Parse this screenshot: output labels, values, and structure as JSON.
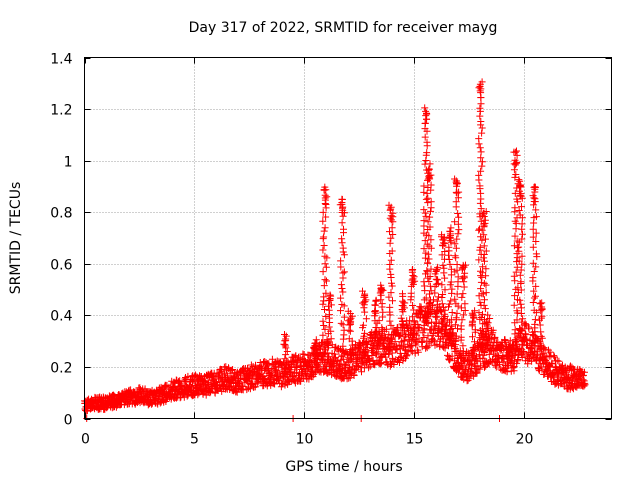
{
  "chart_data": {
    "type": "scatter",
    "title": "Day 317 of 2022, SRMTID for receiver mayg",
    "xlabel": "GPS time / hours",
    "ylabel": "SRMTID / TECUs",
    "xlim": [
      0,
      24
    ],
    "ylim": [
      0,
      1.4
    ],
    "x_ticks": [
      0,
      5,
      10,
      15,
      20
    ],
    "x_tick_labels": [
      "0",
      "5",
      "10",
      "15",
      "20"
    ],
    "y_ticks": [
      0,
      0.2,
      0.4,
      0.6,
      0.8,
      1.0,
      1.2,
      1.4
    ],
    "y_tick_labels": [
      "0",
      "0.2",
      "0.4",
      "0.6",
      "0.8",
      "1",
      "1.2",
      "1.4"
    ],
    "grid": true,
    "marker": "+",
    "colors": {
      "series": "#ff0000",
      "axes": "#000000",
      "grid": "#a0a0a0"
    },
    "series": [
      {
        "name": "SRMTID",
        "baseline": [
          [
            0.0,
            0.05
          ],
          [
            0.5,
            0.06
          ],
          [
            1.0,
            0.06
          ],
          [
            1.5,
            0.07
          ],
          [
            2.0,
            0.08
          ],
          [
            2.5,
            0.09
          ],
          [
            3.0,
            0.08
          ],
          [
            3.5,
            0.09
          ],
          [
            4.0,
            0.11
          ],
          [
            4.5,
            0.12
          ],
          [
            5.0,
            0.13
          ],
          [
            5.5,
            0.13
          ],
          [
            6.0,
            0.14
          ],
          [
            6.5,
            0.16
          ],
          [
            7.0,
            0.14
          ],
          [
            7.5,
            0.16
          ],
          [
            8.0,
            0.17
          ],
          [
            8.5,
            0.18
          ],
          [
            9.0,
            0.17
          ],
          [
            9.5,
            0.19
          ],
          [
            10.0,
            0.2
          ],
          [
            10.5,
            0.22
          ],
          [
            11.0,
            0.24
          ],
          [
            11.5,
            0.22
          ],
          [
            12.0,
            0.2
          ],
          [
            12.5,
            0.24
          ],
          [
            13.0,
            0.27
          ],
          [
            13.5,
            0.28
          ],
          [
            14.0,
            0.27
          ],
          [
            14.5,
            0.3
          ],
          [
            15.0,
            0.33
          ],
          [
            15.5,
            0.36
          ],
          [
            16.0,
            0.38
          ],
          [
            16.5,
            0.33
          ],
          [
            17.0,
            0.22
          ],
          [
            17.5,
            0.2
          ],
          [
            18.0,
            0.25
          ],
          [
            18.5,
            0.28
          ],
          [
            19.0,
            0.25
          ],
          [
            19.5,
            0.24
          ],
          [
            20.0,
            0.3
          ],
          [
            20.5,
            0.26
          ],
          [
            21.0,
            0.22
          ],
          [
            21.5,
            0.18
          ],
          [
            22.0,
            0.16
          ],
          [
            22.5,
            0.15
          ],
          [
            22.8,
            0.14
          ]
        ],
        "spikes": [
          {
            "x": 9.15,
            "peak": 0.32
          },
          {
            "x": 10.55,
            "peak": 0.3
          },
          {
            "x": 10.95,
            "peak": 0.89
          },
          {
            "x": 11.15,
            "peak": 0.48
          },
          {
            "x": 11.75,
            "peak": 0.85
          },
          {
            "x": 12.1,
            "peak": 0.42
          },
          {
            "x": 12.75,
            "peak": 0.5
          },
          {
            "x": 13.25,
            "peak": 0.46
          },
          {
            "x": 13.5,
            "peak": 0.52
          },
          {
            "x": 13.95,
            "peak": 0.82
          },
          {
            "x": 14.5,
            "peak": 0.48
          },
          {
            "x": 14.95,
            "peak": 0.58
          },
          {
            "x": 15.55,
            "peak": 1.2
          },
          {
            "x": 15.7,
            "peak": 0.98
          },
          {
            "x": 16.05,
            "peak": 0.58
          },
          {
            "x": 16.35,
            "peak": 0.72
          },
          {
            "x": 16.65,
            "peak": 0.74
          },
          {
            "x": 16.95,
            "peak": 0.93
          },
          {
            "x": 17.25,
            "peak": 0.6
          },
          {
            "x": 17.7,
            "peak": 0.42
          },
          {
            "x": 18.05,
            "peak": 1.3
          },
          {
            "x": 18.2,
            "peak": 0.8
          },
          {
            "x": 18.35,
            "peak": 0.4
          },
          {
            "x": 19.3,
            "peak": 0.28
          },
          {
            "x": 19.65,
            "peak": 1.04
          },
          {
            "x": 19.85,
            "peak": 0.92
          },
          {
            "x": 20.5,
            "peak": 0.9
          },
          {
            "x": 20.8,
            "peak": 0.45
          }
        ],
        "zero_points": [
          [
            0.1,
            0.0
          ],
          [
            9.5,
            0.0
          ],
          [
            12.6,
            0.0
          ],
          [
            18.9,
            0.0
          ]
        ]
      }
    ]
  }
}
